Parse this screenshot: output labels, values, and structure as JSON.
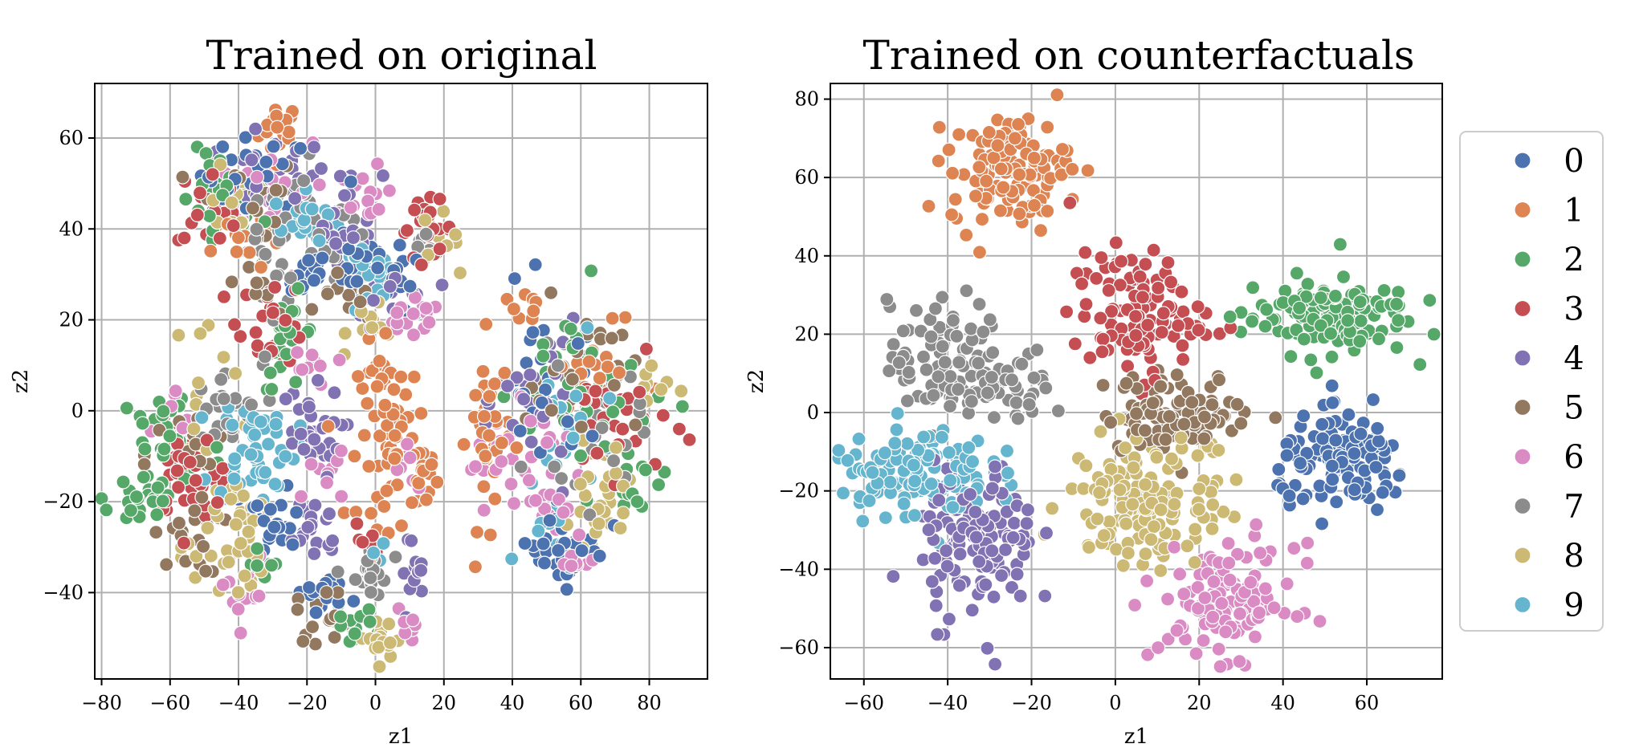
{
  "chart_data": [
    {
      "type": "scatter",
      "title": "Trained on original",
      "xlabel": "z1",
      "ylabel": "z2",
      "xlim": [
        -82,
        97
      ],
      "ylim": [
        -59,
        72
      ],
      "xticks": [
        -80,
        -60,
        -40,
        -20,
        0,
        20,
        40,
        60,
        80
      ],
      "yticks": [
        -40,
        -20,
        0,
        20,
        40,
        60
      ],
      "grid": true,
      "clusters": [
        {
          "label": "1",
          "cx": -28,
          "cy": 62,
          "sx": 3,
          "sy": 3,
          "n": 20
        },
        {
          "label": "0",
          "cx": -35,
          "cy": 52,
          "sx": 8,
          "sy": 4,
          "n": 30
        },
        {
          "label": "4",
          "cx": -30,
          "cy": 52,
          "sx": 8,
          "sy": 4,
          "n": 25
        },
        {
          "label": "2",
          "cx": -45,
          "cy": 45,
          "sx": 6,
          "sy": 6,
          "n": 25
        },
        {
          "label": "3",
          "cx": -48,
          "cy": 45,
          "sx": 5,
          "sy": 5,
          "n": 20
        },
        {
          "label": "5",
          "cx": -38,
          "cy": 45,
          "sx": 8,
          "sy": 6,
          "n": 20
        },
        {
          "label": "8",
          "cx": -40,
          "cy": 48,
          "sx": 7,
          "sy": 6,
          "n": 15
        },
        {
          "label": "6",
          "cx": -30,
          "cy": 50,
          "sx": 8,
          "sy": 6,
          "n": 20
        },
        {
          "label": "7",
          "cx": -25,
          "cy": 45,
          "sx": 7,
          "sy": 5,
          "n": 20
        },
        {
          "label": "9",
          "cx": -20,
          "cy": 42,
          "sx": 5,
          "sy": 3,
          "n": 20
        },
        {
          "label": "1",
          "cx": -40,
          "cy": 38,
          "sx": 4,
          "sy": 4,
          "n": 15
        },
        {
          "label": "4",
          "cx": -8,
          "cy": 43,
          "sx": 5,
          "sy": 5,
          "n": 25
        },
        {
          "label": "6",
          "cx": -3,
          "cy": 45,
          "sx": 4,
          "sy": 4,
          "n": 15
        },
        {
          "label": "7",
          "cx": -12,
          "cy": 40,
          "sx": 6,
          "sy": 5,
          "n": 15
        },
        {
          "label": "3",
          "cx": 15,
          "cy": 40,
          "sx": 4,
          "sy": 3,
          "n": 25
        },
        {
          "label": "8",
          "cx": 18,
          "cy": 38,
          "sx": 3,
          "sy": 3,
          "n": 10
        },
        {
          "label": "7",
          "cx": 14,
          "cy": 33,
          "sx": 3,
          "sy": 3,
          "n": 10
        },
        {
          "label": "0",
          "cx": -20,
          "cy": 30,
          "sx": 3,
          "sy": 3,
          "n": 15
        },
        {
          "label": "0",
          "cx": -5,
          "cy": 34,
          "sx": 5,
          "sy": 5,
          "n": 25
        },
        {
          "label": "0",
          "cx": 8,
          "cy": 28,
          "sx": 4,
          "sy": 4,
          "n": 15
        },
        {
          "label": "9",
          "cx": -2,
          "cy": 28,
          "sx": 4,
          "sy": 4,
          "n": 20
        },
        {
          "label": "5",
          "cx": -8,
          "cy": 25,
          "sx": 4,
          "sy": 3,
          "n": 15
        },
        {
          "label": "6",
          "cx": 10,
          "cy": 20,
          "sx": 5,
          "sy": 2,
          "n": 20
        },
        {
          "label": "8",
          "cx": 0,
          "cy": 20,
          "sx": 4,
          "sy": 3,
          "n": 10
        },
        {
          "label": "4",
          "cx": 5,
          "cy": 25,
          "sx": 6,
          "sy": 4,
          "n": 15
        },
        {
          "label": "3",
          "cx": -30,
          "cy": 20,
          "sx": 5,
          "sy": 5,
          "n": 25
        },
        {
          "label": "2",
          "cx": -25,
          "cy": 15,
          "sx": 4,
          "sy": 5,
          "n": 20
        },
        {
          "label": "7",
          "cx": -30,
          "cy": 32,
          "sx": 4,
          "sy": 5,
          "n": 15
        },
        {
          "label": "5",
          "cx": -35,
          "cy": 28,
          "sx": 3,
          "sy": 4,
          "n": 10
        },
        {
          "label": "6",
          "cx": -20,
          "cy": 8,
          "sx": 3,
          "sy": 4,
          "n": 10
        },
        {
          "label": "8",
          "cx": -48,
          "cy": 5,
          "sx": 6,
          "sy": 8,
          "n": 15
        },
        {
          "label": "7",
          "cx": -45,
          "cy": 0,
          "sx": 6,
          "sy": 5,
          "n": 25
        },
        {
          "label": "5",
          "cx": -55,
          "cy": -10,
          "sx": 6,
          "sy": 5,
          "n": 20
        },
        {
          "label": "2",
          "cx": -60,
          "cy": -8,
          "sx": 8,
          "sy": 8,
          "n": 35
        },
        {
          "label": "3",
          "cx": -55,
          "cy": -12,
          "sx": 5,
          "sy": 6,
          "n": 30
        },
        {
          "label": "6",
          "cx": -58,
          "cy": -5,
          "sx": 4,
          "sy": 5,
          "n": 10
        },
        {
          "label": "2",
          "cx": -70,
          "cy": -20,
          "sx": 4,
          "sy": 3,
          "n": 20
        },
        {
          "label": "9",
          "cx": -35,
          "cy": -8,
          "sx": 6,
          "sy": 6,
          "n": 50
        },
        {
          "label": "4",
          "cx": -20,
          "cy": -5,
          "sx": 5,
          "sy": 5,
          "n": 30
        },
        {
          "label": "5",
          "cx": -55,
          "cy": -28,
          "sx": 5,
          "sy": 4,
          "n": 20
        },
        {
          "label": "8",
          "cx": -45,
          "cy": -32,
          "sx": 6,
          "sy": 5,
          "n": 25
        },
        {
          "label": "6",
          "cx": -38,
          "cy": -40,
          "sx": 3,
          "sy": 4,
          "n": 15
        },
        {
          "label": "0",
          "cx": -30,
          "cy": -25,
          "sx": 5,
          "sy": 4,
          "n": 25
        },
        {
          "label": "8",
          "cx": -38,
          "cy": -22,
          "sx": 4,
          "sy": 3,
          "n": 15
        },
        {
          "label": "3",
          "cx": -48,
          "cy": -20,
          "sx": 4,
          "sy": 4,
          "n": 10
        },
        {
          "label": "2",
          "cx": -32,
          "cy": -35,
          "sx": 3,
          "sy": 3,
          "n": 8
        },
        {
          "label": "4",
          "cx": -18,
          "cy": -25,
          "sx": 4,
          "sy": 4,
          "n": 20
        },
        {
          "label": "6",
          "cx": -15,
          "cy": -15,
          "sx": 3,
          "sy": 3,
          "n": 10
        },
        {
          "label": "0",
          "cx": -15,
          "cy": -40,
          "sx": 4,
          "sy": 2,
          "n": 15
        },
        {
          "label": "5",
          "cx": -15,
          "cy": -45,
          "sx": 4,
          "sy": 3,
          "n": 15
        },
        {
          "label": "2",
          "cx": -8,
          "cy": -47,
          "sx": 4,
          "sy": 2,
          "n": 15
        },
        {
          "label": "7",
          "cx": -2,
          "cy": -37,
          "sx": 3,
          "sy": 4,
          "n": 20
        },
        {
          "label": "8",
          "cx": 3,
          "cy": -50,
          "sx": 4,
          "sy": 2,
          "n": 15
        },
        {
          "label": "6",
          "cx": 10,
          "cy": -48,
          "sx": 2,
          "sy": 2,
          "n": 8
        },
        {
          "label": "4",
          "cx": 10,
          "cy": -35,
          "sx": 2,
          "sy": 4,
          "n": 12
        },
        {
          "label": "3",
          "cx": -2,
          "cy": -28,
          "sx": 2,
          "sy": 2,
          "n": 6
        },
        {
          "label": "9",
          "cx": 0,
          "cy": -32,
          "sx": 2,
          "sy": 2,
          "n": 5
        },
        {
          "label": "1",
          "cx": 5,
          "cy": -5,
          "sx": 5,
          "sy": 10,
          "n": 70
        },
        {
          "label": "1",
          "cx": 14,
          "cy": -15,
          "sx": 2,
          "sy": 3,
          "n": 10
        },
        {
          "label": "6",
          "cx": 10,
          "cy": -12,
          "sx": 3,
          "sy": 3,
          "n": 8
        },
        {
          "label": "1",
          "cx": 33,
          "cy": -5,
          "sx": 3,
          "sy": 10,
          "n": 40
        },
        {
          "label": "6",
          "cx": 32,
          "cy": -10,
          "sx": 3,
          "sy": 5,
          "n": 10
        },
        {
          "label": "5",
          "cx": 60,
          "cy": 8,
          "sx": 8,
          "sy": 8,
          "n": 25
        },
        {
          "label": "3",
          "cx": 70,
          "cy": -2,
          "sx": 8,
          "sy": 6,
          "n": 30
        },
        {
          "label": "0",
          "cx": 50,
          "cy": 5,
          "sx": 8,
          "sy": 10,
          "n": 30
        },
        {
          "label": "4",
          "cx": 48,
          "cy": 2,
          "sx": 6,
          "sy": 8,
          "n": 30
        },
        {
          "label": "9",
          "cx": 55,
          "cy": -5,
          "sx": 8,
          "sy": 8,
          "n": 30
        },
        {
          "label": "2",
          "cx": 60,
          "cy": 5,
          "sx": 10,
          "sy": 10,
          "n": 35
        },
        {
          "label": "7",
          "cx": 62,
          "cy": -5,
          "sx": 8,
          "sy": 8,
          "n": 25
        },
        {
          "label": "6",
          "cx": 45,
          "cy": -10,
          "sx": 5,
          "sy": 5,
          "n": 15
        },
        {
          "label": "8",
          "cx": 68,
          "cy": -15,
          "sx": 6,
          "sy": 5,
          "n": 20
        },
        {
          "label": "2",
          "cx": 75,
          "cy": -15,
          "sx": 5,
          "sy": 4,
          "n": 15
        },
        {
          "label": "6",
          "cx": 52,
          "cy": -20,
          "sx": 4,
          "sy": 4,
          "n": 15
        },
        {
          "label": "0",
          "cx": 55,
          "cy": -30,
          "sx": 7,
          "sy": 4,
          "n": 30
        },
        {
          "label": "9",
          "cx": 50,
          "cy": -28,
          "sx": 4,
          "sy": 3,
          "n": 10
        },
        {
          "label": "6",
          "cx": 55,
          "cy": -35,
          "sx": 4,
          "sy": 2,
          "n": 10
        },
        {
          "label": "8",
          "cx": 63,
          "cy": -25,
          "sx": 3,
          "sy": 3,
          "n": 10
        },
        {
          "label": "1",
          "cx": 65,
          "cy": 10,
          "sx": 6,
          "sy": 5,
          "n": 20
        },
        {
          "label": "1",
          "cx": 42,
          "cy": 22,
          "sx": 3,
          "sy": 2,
          "n": 8
        },
        {
          "label": "8",
          "cx": 80,
          "cy": 3,
          "sx": 5,
          "sy": 4,
          "n": 10
        }
      ]
    },
    {
      "type": "scatter",
      "title": "Trained on counterfactuals",
      "xlabel": "z1",
      "ylabel": "z2",
      "xlim": [
        -68,
        78
      ],
      "ylim": [
        -68,
        84
      ],
      "xticks": [
        -60,
        -40,
        -20,
        0,
        20,
        40,
        60
      ],
      "yticks": [
        -60,
        -40,
        -20,
        0,
        20,
        40,
        60,
        80
      ],
      "grid": true,
      "clusters": [
        {
          "label": "1",
          "cx": -25,
          "cy": 62,
          "sx": 7,
          "sy": 7,
          "n": 120
        },
        {
          "label": "3",
          "cx": 5,
          "cy": 25,
          "sx": 8,
          "sy": 8,
          "n": 110
        },
        {
          "label": "2",
          "cx": 50,
          "cy": 25,
          "sx": 10,
          "sy": 5,
          "n": 130
        },
        {
          "label": "7",
          "cx": -40,
          "cy": 12,
          "sx": 7,
          "sy": 8,
          "n": 110
        },
        {
          "label": "7",
          "cx": -22,
          "cy": 7,
          "sx": 5,
          "sy": 4,
          "n": 25
        },
        {
          "label": "5",
          "cx": 15,
          "cy": 0,
          "sx": 9,
          "sy": 5,
          "n": 100
        },
        {
          "label": "9",
          "cx": -48,
          "cy": -15,
          "sx": 9,
          "sy": 6,
          "n": 130
        },
        {
          "label": "4",
          "cx": -33,
          "cy": -33,
          "sx": 7,
          "sy": 10,
          "n": 130
        },
        {
          "label": "0",
          "cx": 55,
          "cy": -13,
          "sx": 8,
          "sy": 6,
          "n": 130
        },
        {
          "label": "8",
          "cx": 5,
          "cy": -22,
          "sx": 8,
          "sy": 8,
          "n": 130
        },
        {
          "label": "8",
          "cx": 22,
          "cy": -18,
          "sx": 2,
          "sy": 5,
          "n": 15
        },
        {
          "label": "6",
          "cx": 27,
          "cy": -48,
          "sx": 8,
          "sy": 7,
          "n": 120
        }
      ]
    }
  ],
  "legend": {
    "entries": [
      "0",
      "1",
      "2",
      "3",
      "4",
      "5",
      "6",
      "7",
      "8",
      "9"
    ],
    "placement": "right"
  },
  "colors": {
    "0": "#4c72b0",
    "1": "#dd8452",
    "2": "#55a868",
    "3": "#c44e52",
    "4": "#8172b3",
    "5": "#937860",
    "6": "#da8bc3",
    "7": "#8c8c8c",
    "8": "#ccb974",
    "9": "#64b5cd"
  }
}
